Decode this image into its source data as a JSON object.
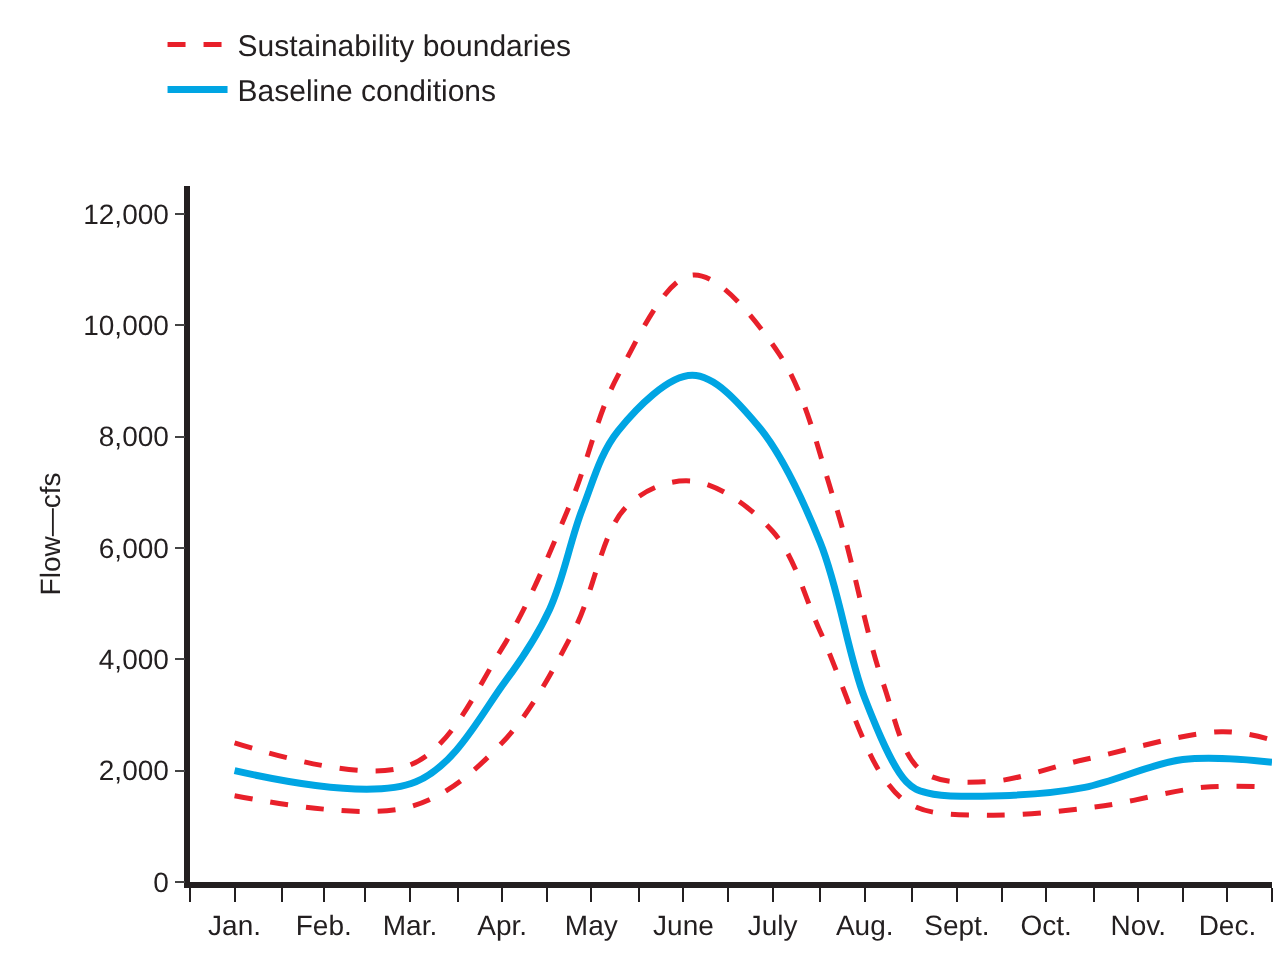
{
  "chart_data": {
    "type": "line",
    "ylabel": "Flow—cfs",
    "legend": "top left",
    "marker": "none",
    "xlim": [
      "--01-01",
      "--12-31"
    ],
    "ylim": [
      0,
      12500
    ],
    "xticks": [
      {
        "value": "--01-01",
        "label": null
      },
      {
        "value": "--02-01",
        "label": null
      },
      {
        "value": "--03-01",
        "label": null
      },
      {
        "value": "--04-01",
        "label": null
      },
      {
        "value": "--05-01",
        "label": null
      },
      {
        "value": "--06-01",
        "label": null
      },
      {
        "value": "--07-01",
        "label": null
      },
      {
        "value": "--08-01",
        "label": null
      },
      {
        "value": "--09-01",
        "label": null
      },
      {
        "value": "--10-01",
        "label": null
      },
      {
        "value": "--11-01",
        "label": null
      },
      {
        "value": "--12-01",
        "label": null
      },
      {
        "value": "--12-31",
        "label": null
      },
      {
        "value": "--01-16",
        "label": "Jan."
      },
      {
        "value": "--02-15",
        "label": "Feb."
      },
      {
        "value": "--03-16",
        "label": "Mar."
      },
      {
        "value": "--04-16",
        "label": "Apr."
      },
      {
        "value": "--05-16",
        "label": "May"
      },
      {
        "value": "--06-16",
        "label": "June"
      },
      {
        "value": "--07-16",
        "label": "July"
      },
      {
        "value": "--08-16",
        "label": "Aug."
      },
      {
        "value": "--09-16",
        "label": "Sept."
      },
      {
        "value": "--10-16",
        "label": "Oct."
      },
      {
        "value": "--11-16",
        "label": "Nov."
      },
      {
        "value": "--12-16",
        "label": "Dec."
      }
    ],
    "yticks": [
      0,
      {
        "value": 2000,
        "label": "2,000"
      },
      {
        "value": 4000,
        "label": "4,000"
      },
      {
        "value": 6000,
        "label": "6,000"
      },
      {
        "value": 8000,
        "label": "8,000"
      },
      {
        "value": 10000,
        "label": "10,000"
      },
      {
        "value": 12000,
        "label": "12,000"
      }
    ],
    "series": [
      {
        "name": "Sustainability boundaries",
        "color": "#e8202a",
        "line_style": "dashed",
        "x": [
          "--01-16",
          "--03-16",
          "--04-16",
          "--05-09",
          "--05-25",
          "--06-19",
          "--07-18",
          "--08-06",
          "--08-22",
          "--09-04",
          "--09-26",
          "--10-29",
          "--12-14",
          "--12-31"
        ],
        "values": [
          2500,
          2100,
          4200,
          6800,
          9100,
          10900,
          9500,
          6800,
          3600,
          2000,
          1800,
          2200,
          2700,
          2550
        ]
      },
      {
        "name": "Baseline conditions",
        "color": "#00a5e3",
        "line_style": "solid",
        "x": [
          "--01-16",
          "--03-18",
          "--04-17",
          "--05-02",
          "--05-13",
          "--05-25",
          "--06-19",
          "--07-11",
          "--08-01",
          "--08-16",
          "--08-30",
          "--09-06",
          "--10-01",
          "--10-29",
          "--12-01",
          "--12-31"
        ],
        "values": [
          2000,
          1800,
          3600,
          4900,
          6700,
          8100,
          9100,
          8200,
          6100,
          3300,
          1800,
          1600,
          1550,
          1700,
          2200,
          2150
        ]
      },
      {
        "color": "#e8202a",
        "line_style": "dashed",
        "x": [
          "--01-16",
          "--03-16",
          "--04-16",
          "--05-10",
          "--05-28",
          "--06-19",
          "--07-16",
          "--08-01",
          "--08-22",
          "--09-02",
          "--09-26",
          "--11-02",
          "--12-08",
          "--12-31"
        ],
        "values": [
          1550,
          1350,
          2500,
          4500,
          6750,
          7200,
          6300,
          4500,
          1900,
          1350,
          1200,
          1350,
          1700,
          1700
        ]
      }
    ]
  }
}
